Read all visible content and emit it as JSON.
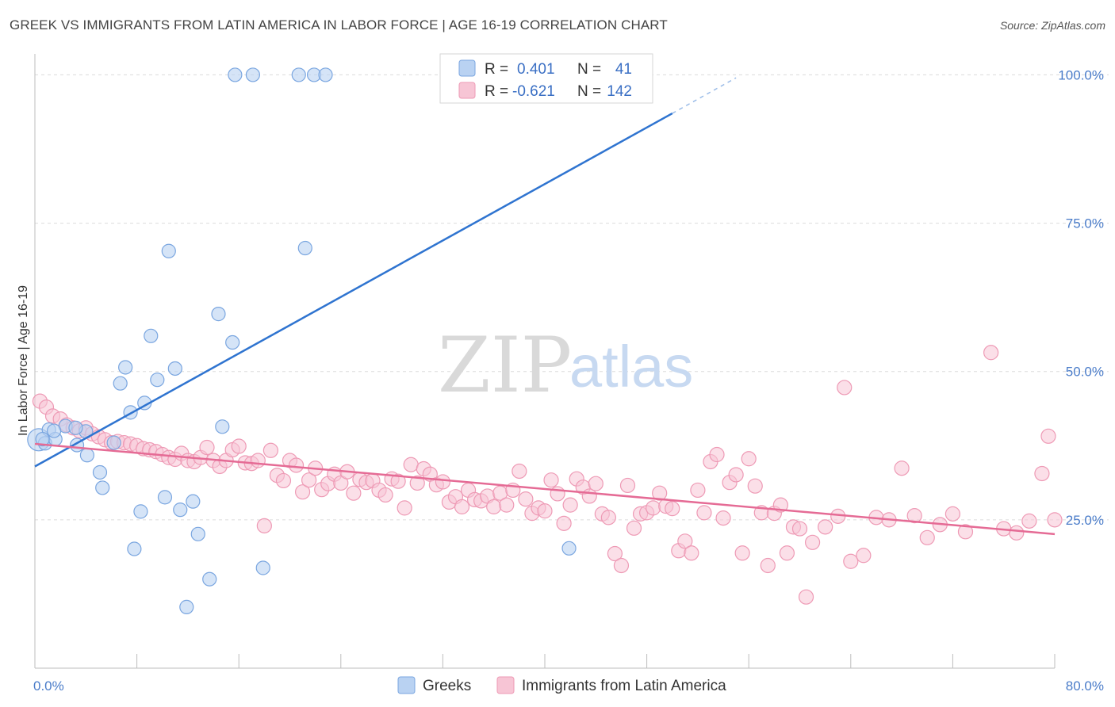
{
  "title": "GREEK VS IMMIGRANTS FROM LATIN AMERICA IN LABOR FORCE | AGE 16-19 CORRELATION CHART",
  "source": "Source: ZipAtlas.com",
  "watermark": {
    "zip": "ZIP",
    "atlas": "atlas"
  },
  "legend": {
    "rows": [
      {
        "r_label": "R =",
        "r_value": "0.401",
        "n_label": "N =",
        "n_value": "41"
      },
      {
        "r_label": "R =",
        "r_value": "-0.621",
        "n_label": "N =",
        "n_value": "142"
      }
    ]
  },
  "bottom_legend": [
    "Greeks",
    "Immigrants from Latin America"
  ],
  "colors": {
    "greeks_fill": "#b9d2f2",
    "greeks_stroke": "#7aa6e0",
    "greeks_line": "#2f74d0",
    "latin_fill": "#f7c5d5",
    "latin_stroke": "#ee9ab5",
    "latin_line": "#e56b95",
    "grid": "#dcdcdc",
    "tick_text": "#4a7cc9"
  },
  "chart_data": {
    "type": "scatter",
    "title": "GREEK VS IMMIGRANTS FROM LATIN AMERICA IN LABOR FORCE | AGE 16-19 CORRELATION CHART",
    "xlabel": "",
    "ylabel": "In Labor Force | Age 16-19",
    "xlim": [
      0,
      80
    ],
    "ylim": [
      0,
      105
    ],
    "x_tick_labels": [
      "0.0%",
      "80.0%"
    ],
    "y_tick_labels": [
      "25.0%",
      "50.0%",
      "75.0%",
      "100.0%"
    ],
    "y_ticks": [
      25,
      50,
      75,
      100
    ],
    "grid": true,
    "legend_position": "top-center",
    "series": [
      {
        "name": "Greeks",
        "r": 0.401,
        "n": 41,
        "trend": {
          "x0": 0,
          "y0": 34,
          "x1": 50,
          "y1": 93.5,
          "dash_to_x": 55,
          "dash_to_y": 99.5
        },
        "points": [
          [
            0.3,
            38.5
          ],
          [
            0.8,
            37.9
          ],
          [
            1.1,
            40.2
          ],
          [
            1.6,
            38.6
          ],
          [
            2.4,
            40.8
          ],
          [
            3.3,
            37.6
          ],
          [
            4.1,
            35.9
          ],
          [
            4.0,
            39.9
          ],
          [
            5.1,
            33.0
          ],
          [
            5.3,
            30.4
          ],
          [
            6.2,
            38.0
          ],
          [
            6.7,
            48.0
          ],
          [
            7.1,
            50.7
          ],
          [
            7.5,
            43.1
          ],
          [
            7.8,
            20.1
          ],
          [
            8.3,
            26.4
          ],
          [
            8.6,
            44.7
          ],
          [
            9.1,
            56.0
          ],
          [
            9.6,
            48.6
          ],
          [
            10.2,
            28.8
          ],
          [
            10.5,
            70.3
          ],
          [
            11.0,
            50.5
          ],
          [
            11.4,
            26.7
          ],
          [
            11.9,
            10.3
          ],
          [
            12.4,
            28.1
          ],
          [
            12.8,
            22.6
          ],
          [
            13.7,
            15.0
          ],
          [
            14.4,
            59.7
          ],
          [
            14.7,
            40.7
          ],
          [
            15.5,
            54.9
          ],
          [
            15.7,
            100.0
          ],
          [
            17.1,
            100.0
          ],
          [
            17.9,
            16.9
          ],
          [
            20.7,
            100.0
          ],
          [
            21.2,
            70.8
          ],
          [
            21.9,
            100.0
          ],
          [
            22.8,
            100.0
          ],
          [
            41.9,
            20.2
          ],
          [
            0.6,
            38.6
          ],
          [
            1.5,
            40.0
          ],
          [
            3.2,
            40.5
          ]
        ]
      },
      {
        "name": "Immigrants from Latin America",
        "r": -0.621,
        "n": 142,
        "trend": {
          "x0": 0,
          "y0": 37.8,
          "x1": 80,
          "y1": 22.6
        },
        "points": [
          [
            0.4,
            45.0
          ],
          [
            0.9,
            44.0
          ],
          [
            1.4,
            42.5
          ],
          [
            2.0,
            42.0
          ],
          [
            2.5,
            41.0
          ],
          [
            3.0,
            40.5
          ],
          [
            3.5,
            40.0
          ],
          [
            4.0,
            40.5
          ],
          [
            4.5,
            39.5
          ],
          [
            5.0,
            39.0
          ],
          [
            5.5,
            38.5
          ],
          [
            6.0,
            38.0
          ],
          [
            6.5,
            38.2
          ],
          [
            7.0,
            38.0
          ],
          [
            7.5,
            37.8
          ],
          [
            8.0,
            37.5
          ],
          [
            8.5,
            37.0
          ],
          [
            9.0,
            36.8
          ],
          [
            9.5,
            36.5
          ],
          [
            10.0,
            36.0
          ],
          [
            10.5,
            35.5
          ],
          [
            11.0,
            35.2
          ],
          [
            11.5,
            36.2
          ],
          [
            12.0,
            35.0
          ],
          [
            12.5,
            34.8
          ],
          [
            13.0,
            35.5
          ],
          [
            13.5,
            37.2
          ],
          [
            14.0,
            35.0
          ],
          [
            14.5,
            34.0
          ],
          [
            15.0,
            35.0
          ],
          [
            15.5,
            36.8
          ],
          [
            16.0,
            37.4
          ],
          [
            16.5,
            34.6
          ],
          [
            17.0,
            34.5
          ],
          [
            17.5,
            35.0
          ],
          [
            18.0,
            24.0
          ],
          [
            18.5,
            36.7
          ],
          [
            19.0,
            32.5
          ],
          [
            19.5,
            31.6
          ],
          [
            20.0,
            35.0
          ],
          [
            20.5,
            34.2
          ],
          [
            21.0,
            29.7
          ],
          [
            21.5,
            31.7
          ],
          [
            22.0,
            33.7
          ],
          [
            22.5,
            30.1
          ],
          [
            23.0,
            31.1
          ],
          [
            23.5,
            32.7
          ],
          [
            24.0,
            31.2
          ],
          [
            24.5,
            33.1
          ],
          [
            25.0,
            29.5
          ],
          [
            25.5,
            31.8
          ],
          [
            26.0,
            31.3
          ],
          [
            26.5,
            31.6
          ],
          [
            27.0,
            30.0
          ],
          [
            27.5,
            29.2
          ],
          [
            28.0,
            31.9
          ],
          [
            28.5,
            31.5
          ],
          [
            29.0,
            27.0
          ],
          [
            29.5,
            34.3
          ],
          [
            30.0,
            31.2
          ],
          [
            30.5,
            33.6
          ],
          [
            31.0,
            32.7
          ],
          [
            31.5,
            30.9
          ],
          [
            32.0,
            31.4
          ],
          [
            32.5,
            28.0
          ],
          [
            33.0,
            28.9
          ],
          [
            33.5,
            27.2
          ],
          [
            34.0,
            30.0
          ],
          [
            34.5,
            28.4
          ],
          [
            35.0,
            28.2
          ],
          [
            35.5,
            29.0
          ],
          [
            36.0,
            27.2
          ],
          [
            36.5,
            29.5
          ],
          [
            37.0,
            27.5
          ],
          [
            37.5,
            30.0
          ],
          [
            38.0,
            33.2
          ],
          [
            38.5,
            28.5
          ],
          [
            39.0,
            26.1
          ],
          [
            39.5,
            27.0
          ],
          [
            40.0,
            26.5
          ],
          [
            40.5,
            31.7
          ],
          [
            41.0,
            29.4
          ],
          [
            41.5,
            24.4
          ],
          [
            42.0,
            27.5
          ],
          [
            42.5,
            31.9
          ],
          [
            43.0,
            30.5
          ],
          [
            43.5,
            29.0
          ],
          [
            44.0,
            31.1
          ],
          [
            44.5,
            26.0
          ],
          [
            45.0,
            25.4
          ],
          [
            45.5,
            19.3
          ],
          [
            46.0,
            17.3
          ],
          [
            46.5,
            30.8
          ],
          [
            47.0,
            23.6
          ],
          [
            47.5,
            26.0
          ],
          [
            48.0,
            26.2
          ],
          [
            48.5,
            27.0
          ],
          [
            49.0,
            29.5
          ],
          [
            49.5,
            27.3
          ],
          [
            50.0,
            26.9
          ],
          [
            50.5,
            19.8
          ],
          [
            51.0,
            21.4
          ],
          [
            51.5,
            19.4
          ],
          [
            52.0,
            30.0
          ],
          [
            52.5,
            26.2
          ],
          [
            53.0,
            34.8
          ],
          [
            53.5,
            36.0
          ],
          [
            54.0,
            25.3
          ],
          [
            54.5,
            31.3
          ],
          [
            55.0,
            32.6
          ],
          [
            55.5,
            19.4
          ],
          [
            56.0,
            35.3
          ],
          [
            56.5,
            30.7
          ],
          [
            57.0,
            26.2
          ],
          [
            57.5,
            17.3
          ],
          [
            58.0,
            26.1
          ],
          [
            58.5,
            27.5
          ],
          [
            59.0,
            19.4
          ],
          [
            59.5,
            23.8
          ],
          [
            60.0,
            23.5
          ],
          [
            60.5,
            12.0
          ],
          [
            61.0,
            21.2
          ],
          [
            62.0,
            23.8
          ],
          [
            63.0,
            25.6
          ],
          [
            63.5,
            47.3
          ],
          [
            64.0,
            18.0
          ],
          [
            65.0,
            19.0
          ],
          [
            66.0,
            25.4
          ],
          [
            67.0,
            25.0
          ],
          [
            68.0,
            33.7
          ],
          [
            69.0,
            25.7
          ],
          [
            70.0,
            22.0
          ],
          [
            71.0,
            24.2
          ],
          [
            72.0,
            26.0
          ],
          [
            73.0,
            23.0
          ],
          [
            75.0,
            53.2
          ],
          [
            76.0,
            23.5
          ],
          [
            77.0,
            22.8
          ],
          [
            78.0,
            24.8
          ],
          [
            79.0,
            32.8
          ],
          [
            79.5,
            39.1
          ],
          [
            80.0,
            25.0
          ]
        ]
      }
    ]
  }
}
